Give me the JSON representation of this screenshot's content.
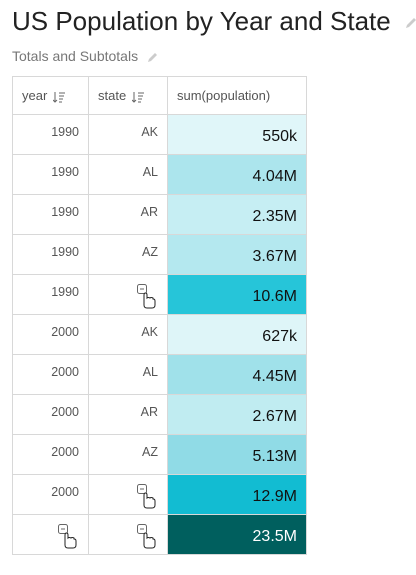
{
  "header": {
    "title": "US Population by Year and State",
    "subtitle": "Totals and Subtotals"
  },
  "table": {
    "columns": [
      "year",
      "state",
      "sum(population)"
    ],
    "rows": [
      [
        "1990",
        "AK",
        "550k"
      ],
      [
        "1990",
        "AL",
        "4.04M"
      ],
      [
        "1990",
        "AR",
        "2.35M"
      ],
      [
        "1990",
        "AZ",
        "3.67M"
      ],
      [
        "1990",
        null,
        "10.6M"
      ],
      [
        "2000",
        "AK",
        "627k"
      ],
      [
        "2000",
        "AL",
        "4.45M"
      ],
      [
        "2000",
        "AR",
        "2.67M"
      ],
      [
        "2000",
        "AZ",
        "5.13M"
      ],
      [
        "2000",
        null,
        "12.9M"
      ],
      [
        null,
        null,
        "23.5M"
      ]
    ],
    "cell_colors": [
      "#e0f6f9",
      "#ace5ed",
      "#c6eef3",
      "#b4e8ef",
      "#26c5d9",
      "#def5f8",
      "#a0e1ea",
      "#c0ecf1",
      "#90dbe6",
      "#12bcd2",
      "#005f5e"
    ]
  }
}
